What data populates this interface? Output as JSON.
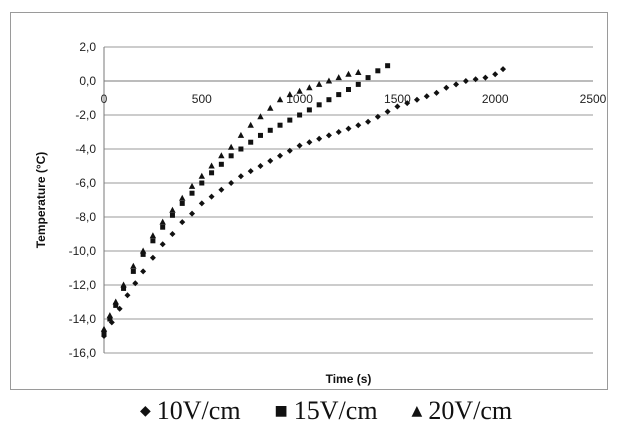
{
  "chart_data": {
    "type": "scatter",
    "title": "",
    "xlabel": "Time (s)",
    "ylabel": "Temperature (°C)",
    "xlim": [
      0,
      2500
    ],
    "ylim": [
      -16,
      2
    ],
    "x_ticks": [
      "0",
      "500",
      "1000",
      "1500",
      "2000",
      "2500"
    ],
    "y_ticks": [
      "2,0",
      "0,0",
      "-2,0",
      "-4,0",
      "-6,0",
      "-8,0",
      "-10,0",
      "-12,0",
      "-14,0",
      "-16,0"
    ],
    "grid": "horizontal",
    "legend_position": "bottom",
    "series": [
      {
        "name": "10V/cm",
        "marker": "diamond",
        "color": "#111111",
        "points": [
          [
            0,
            -15.0
          ],
          [
            40,
            -14.2
          ],
          [
            80,
            -13.4
          ],
          [
            120,
            -12.6
          ],
          [
            160,
            -11.9
          ],
          [
            200,
            -11.2
          ],
          [
            250,
            -10.4
          ],
          [
            300,
            -9.6
          ],
          [
            350,
            -9.0
          ],
          [
            400,
            -8.3
          ],
          [
            450,
            -7.8
          ],
          [
            500,
            -7.2
          ],
          [
            550,
            -6.8
          ],
          [
            600,
            -6.4
          ],
          [
            650,
            -6.0
          ],
          [
            700,
            -5.6
          ],
          [
            750,
            -5.3
          ],
          [
            800,
            -5.0
          ],
          [
            850,
            -4.7
          ],
          [
            900,
            -4.4
          ],
          [
            950,
            -4.1
          ],
          [
            1000,
            -3.8
          ],
          [
            1050,
            -3.6
          ],
          [
            1100,
            -3.4
          ],
          [
            1150,
            -3.2
          ],
          [
            1200,
            -3.0
          ],
          [
            1250,
            -2.8
          ],
          [
            1300,
            -2.6
          ],
          [
            1350,
            -2.4
          ],
          [
            1400,
            -2.1
          ],
          [
            1450,
            -1.8
          ],
          [
            1500,
            -1.5
          ],
          [
            1550,
            -1.3
          ],
          [
            1600,
            -1.1
          ],
          [
            1650,
            -0.9
          ],
          [
            1700,
            -0.7
          ],
          [
            1750,
            -0.4
          ],
          [
            1800,
            -0.2
          ],
          [
            1850,
            0.0
          ],
          [
            1900,
            0.1
          ],
          [
            1950,
            0.2
          ],
          [
            2000,
            0.4
          ],
          [
            2040,
            0.7
          ]
        ]
      },
      {
        "name": "15V/cm",
        "marker": "square",
        "color": "#111111",
        "points": [
          [
            0,
            -14.8
          ],
          [
            30,
            -14.0
          ],
          [
            60,
            -13.2
          ],
          [
            100,
            -12.2
          ],
          [
            150,
            -11.2
          ],
          [
            200,
            -10.2
          ],
          [
            250,
            -9.4
          ],
          [
            300,
            -8.6
          ],
          [
            350,
            -7.9
          ],
          [
            400,
            -7.2
          ],
          [
            450,
            -6.6
          ],
          [
            500,
            -6.0
          ],
          [
            550,
            -5.4
          ],
          [
            600,
            -4.9
          ],
          [
            650,
            -4.4
          ],
          [
            700,
            -4.0
          ],
          [
            750,
            -3.6
          ],
          [
            800,
            -3.2
          ],
          [
            850,
            -2.9
          ],
          [
            900,
            -2.6
          ],
          [
            950,
            -2.3
          ],
          [
            1000,
            -2.0
          ],
          [
            1050,
            -1.7
          ],
          [
            1100,
            -1.4
          ],
          [
            1150,
            -1.1
          ],
          [
            1200,
            -0.8
          ],
          [
            1250,
            -0.5
          ],
          [
            1300,
            -0.2
          ],
          [
            1350,
            0.2
          ],
          [
            1400,
            0.6
          ],
          [
            1450,
            0.9
          ]
        ]
      },
      {
        "name": "20V/cm",
        "marker": "triangle",
        "color": "#111111",
        "points": [
          [
            0,
            -14.6
          ],
          [
            30,
            -13.8
          ],
          [
            60,
            -13.0
          ],
          [
            100,
            -12.0
          ],
          [
            150,
            -10.9
          ],
          [
            200,
            -10.0
          ],
          [
            250,
            -9.1
          ],
          [
            300,
            -8.3
          ],
          [
            350,
            -7.6
          ],
          [
            400,
            -6.9
          ],
          [
            450,
            -6.2
          ],
          [
            500,
            -5.6
          ],
          [
            550,
            -5.0
          ],
          [
            600,
            -4.4
          ],
          [
            650,
            -3.9
          ],
          [
            700,
            -3.2
          ],
          [
            750,
            -2.6
          ],
          [
            800,
            -2.1
          ],
          [
            850,
            -1.6
          ],
          [
            900,
            -1.1
          ],
          [
            950,
            -0.8
          ],
          [
            1000,
            -0.6
          ],
          [
            1050,
            -0.4
          ],
          [
            1100,
            -0.2
          ],
          [
            1150,
            0.0
          ],
          [
            1200,
            0.2
          ],
          [
            1250,
            0.4
          ],
          [
            1300,
            0.5
          ]
        ]
      }
    ]
  }
}
